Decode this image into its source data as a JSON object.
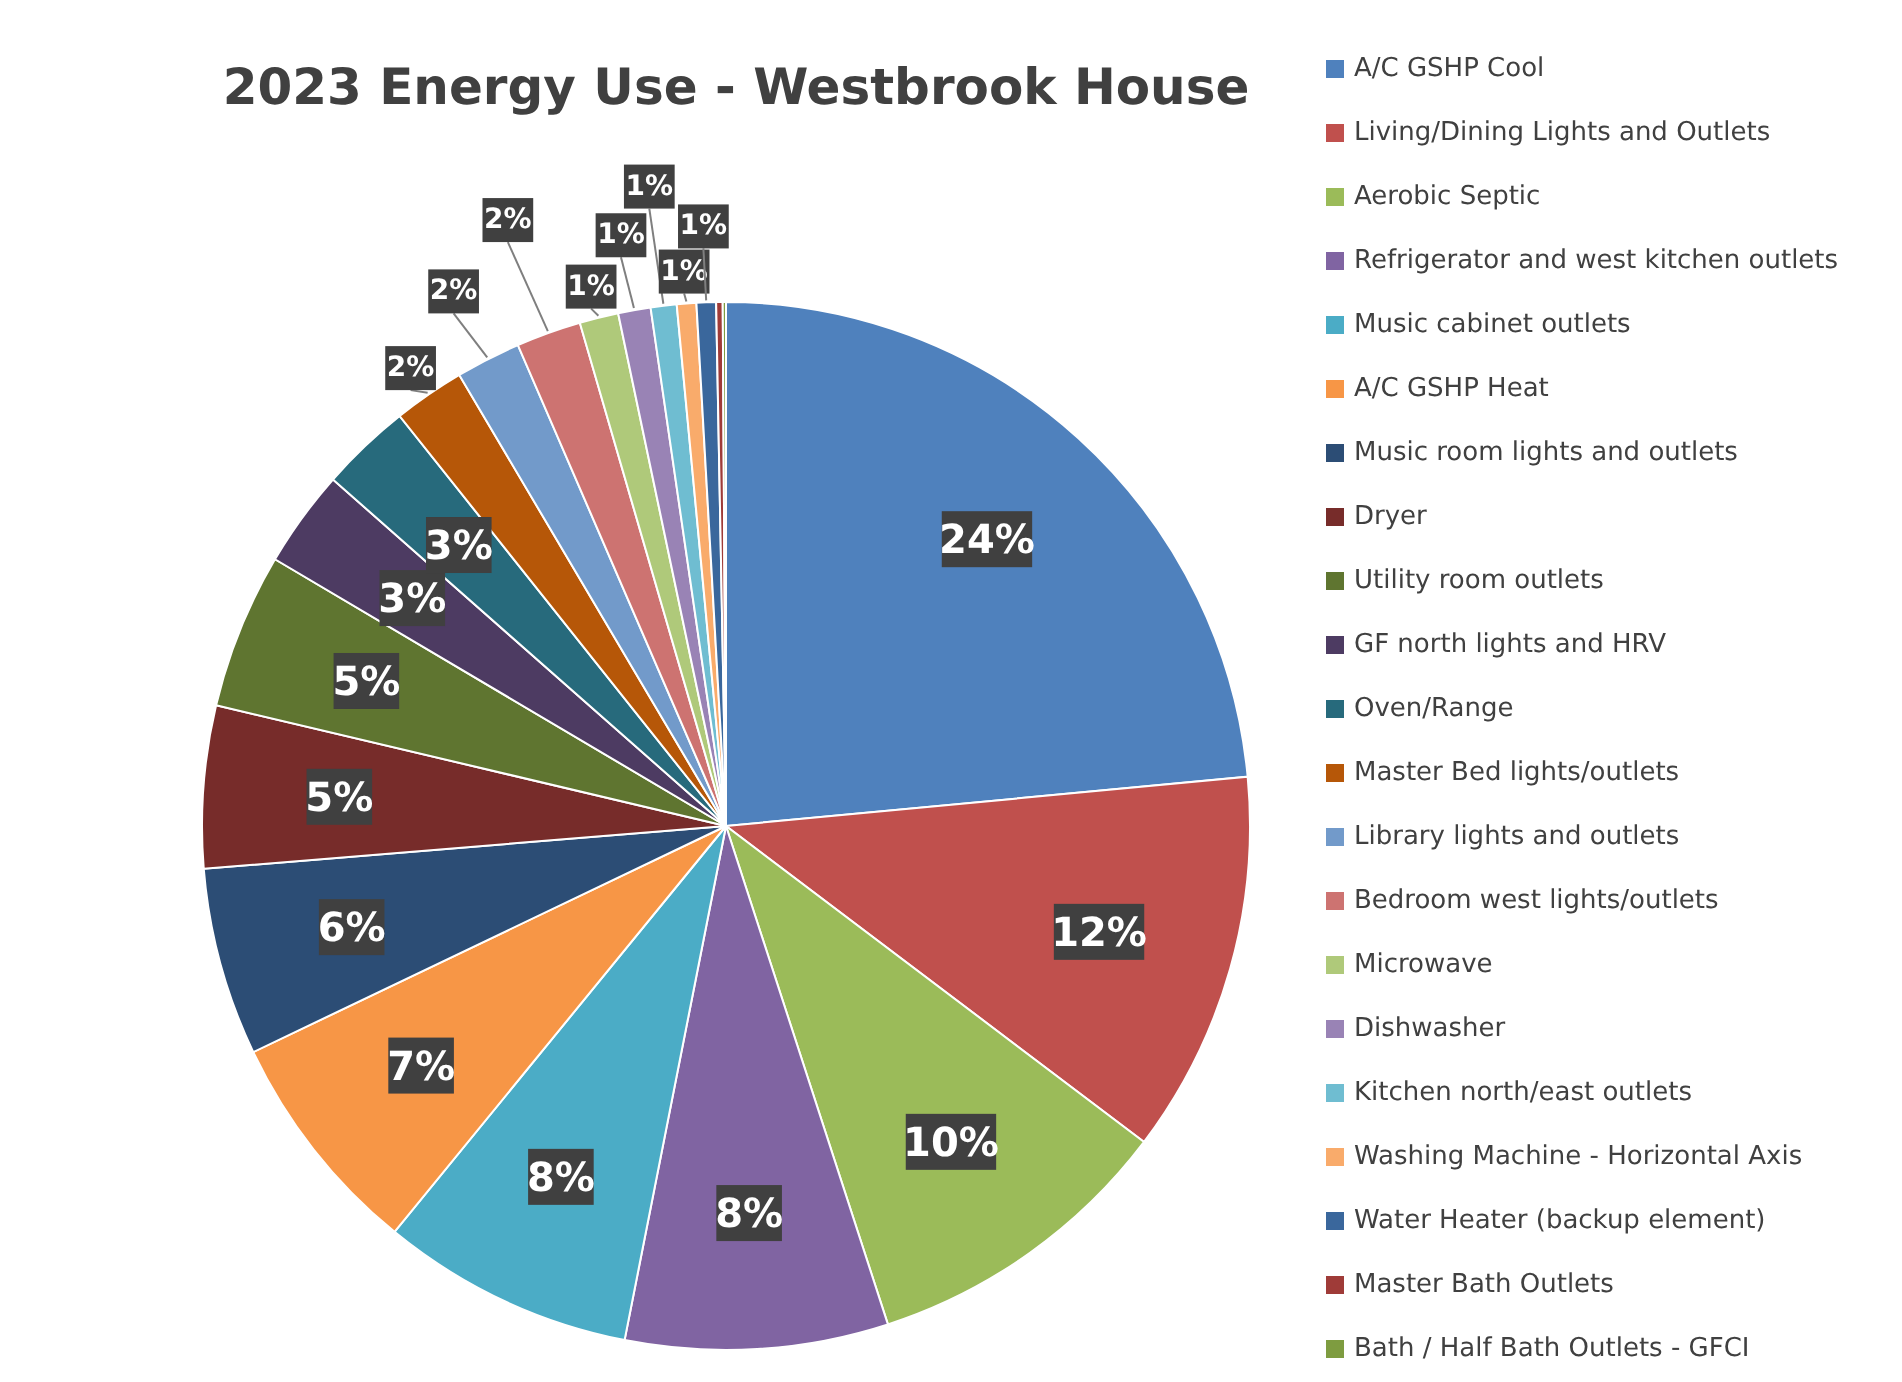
{
  "chart_data": {
    "type": "pie",
    "title": "2023 Energy Use - Westbrook House",
    "categories": [
      "A/C GSHP Cool",
      "Living/Dining Lights and Outlets",
      "Aerobic Septic",
      "Refrigerator and west kitchen outlets",
      "Music cabinet outlets",
      "A/C GSHP Heat",
      "Music room lights and outlets",
      "Dryer",
      "Utility room outlets",
      "GF north lights and HRV",
      "Oven/Range",
      "Master Bed lights/outlets",
      "Library lights and outlets",
      "Bedroom west lights/outlets",
      "Microwave",
      "Dishwasher",
      "Kitchen north/east outlets",
      "Washing Machine - Horizontal Axis",
      "Water Heater (backup element)",
      "Master Bath Outlets",
      "Bath / Half Bath Outlets - GFCI"
    ],
    "values": [
      23.5,
      11.8,
      9.7,
      8.1,
      7.8,
      7,
      5.8,
      5,
      4.8,
      3,
      2.8,
      2.2,
      2,
      2,
      1.2,
      1,
      0.8,
      0.6,
      0.6,
      0.2,
      0.1
    ],
    "value_labels": [
      "24%",
      "12%",
      "10%",
      "8%",
      "8%",
      "7%",
      "6%",
      "5%",
      "5%",
      "3%",
      "3%",
      "2%",
      "2%",
      "2%",
      "1%",
      "1%",
      "1%",
      "1%",
      "1%",
      null,
      null
    ],
    "colors": [
      "#4f81bd",
      "#c0504d",
      "#9bbb59",
      "#8064a2",
      "#4bacc6",
      "#f79646",
      "#2c4d75",
      "#772c2a",
      "#5f7530",
      "#4d3b62",
      "#276a7c",
      "#b65708",
      "#729aca",
      "#cd7371",
      "#afc97a",
      "#9983b5",
      "#6fbdd1",
      "#f9ab6b",
      "#3a679c",
      "#9f3b38",
      "#7e9c40"
    ],
    "legend": "right"
  }
}
